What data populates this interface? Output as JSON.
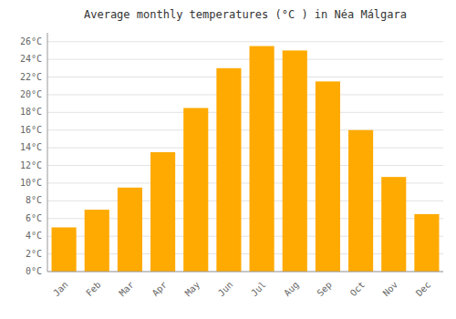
{
  "chart_data": {
    "type": "bar",
    "title": "Average monthly temperatures (°C ) in Néa Málgara",
    "categories": [
      "Jan",
      "Feb",
      "Mar",
      "Apr",
      "May",
      "Jun",
      "Jul",
      "Aug",
      "Sep",
      "Oct",
      "Nov",
      "Dec"
    ],
    "values": [
      5.0,
      7.0,
      9.5,
      13.5,
      18.5,
      23.0,
      25.5,
      25.0,
      21.5,
      16.0,
      10.7,
      6.5
    ],
    "color": "#FFAA00",
    "ylim": [
      0,
      27
    ],
    "yticks": [
      {
        "value": 0,
        "label": "0°C"
      },
      {
        "value": 2,
        "label": "2°C"
      },
      {
        "value": 4,
        "label": "4°C"
      },
      {
        "value": 6,
        "label": "6°C"
      },
      {
        "value": 8,
        "label": "8°C"
      },
      {
        "value": 10,
        "label": "10°C"
      },
      {
        "value": 12,
        "label": "12°C"
      },
      {
        "value": 14,
        "label": "14°C"
      },
      {
        "value": 16,
        "label": "16°C"
      },
      {
        "value": 18,
        "label": "18°C"
      },
      {
        "value": 20,
        "label": "20°C"
      },
      {
        "value": 22,
        "label": "22°C"
      },
      {
        "value": 24,
        "label": "24°C"
      },
      {
        "value": 26,
        "label": "26°C"
      }
    ],
    "grid": true
  }
}
